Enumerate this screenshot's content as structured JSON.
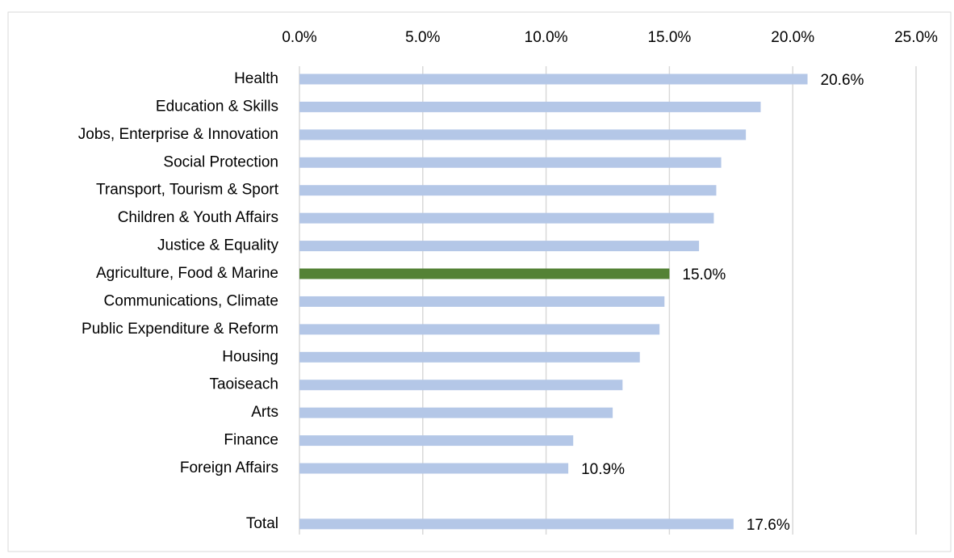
{
  "chart_data": {
    "type": "hbar",
    "categories": [
      "Health",
      "Education & Skills",
      "Jobs, Enterprise & Innovation",
      "Social Protection",
      "Transport, Tourism & Sport",
      "Children & Youth Affairs",
      "Justice & Equality",
      "Agriculture, Food & Marine",
      "Communications, Climate",
      "Public Expenditure & Reform",
      "Housing",
      "Taoiseach",
      "Arts",
      "Finance",
      "Foreign Affairs",
      null,
      "Total"
    ],
    "values": [
      20.6,
      18.7,
      18.1,
      17.1,
      16.9,
      16.8,
      16.2,
      15.0,
      14.8,
      14.6,
      13.8,
      13.1,
      12.7,
      11.1,
      10.9,
      null,
      17.6
    ],
    "value_labels": [
      "20.6%",
      null,
      null,
      null,
      null,
      null,
      null,
      "15.0%",
      null,
      null,
      null,
      null,
      null,
      null,
      "10.9%",
      null,
      "17.6%"
    ],
    "colors": [
      "#b4c7e7",
      "#b4c7e7",
      "#b4c7e7",
      "#b4c7e7",
      "#b4c7e7",
      "#b4c7e7",
      "#b4c7e7",
      "#548235",
      "#b4c7e7",
      "#b4c7e7",
      "#b4c7e7",
      "#b4c7e7",
      "#b4c7e7",
      "#b4c7e7",
      "#b4c7e7",
      null,
      "#b4c7e7"
    ],
    "xlim": [
      0,
      25
    ],
    "xticks": [
      {
        "value": 0,
        "label": "0.0%"
      },
      {
        "value": 5,
        "label": "5.0%"
      },
      {
        "value": 10,
        "label": "10.0%"
      },
      {
        "value": 15,
        "label": "15.0%"
      },
      {
        "value": 20,
        "label": "20.0%"
      },
      {
        "value": 25,
        "label": "25.0%"
      }
    ],
    "grid": true
  }
}
